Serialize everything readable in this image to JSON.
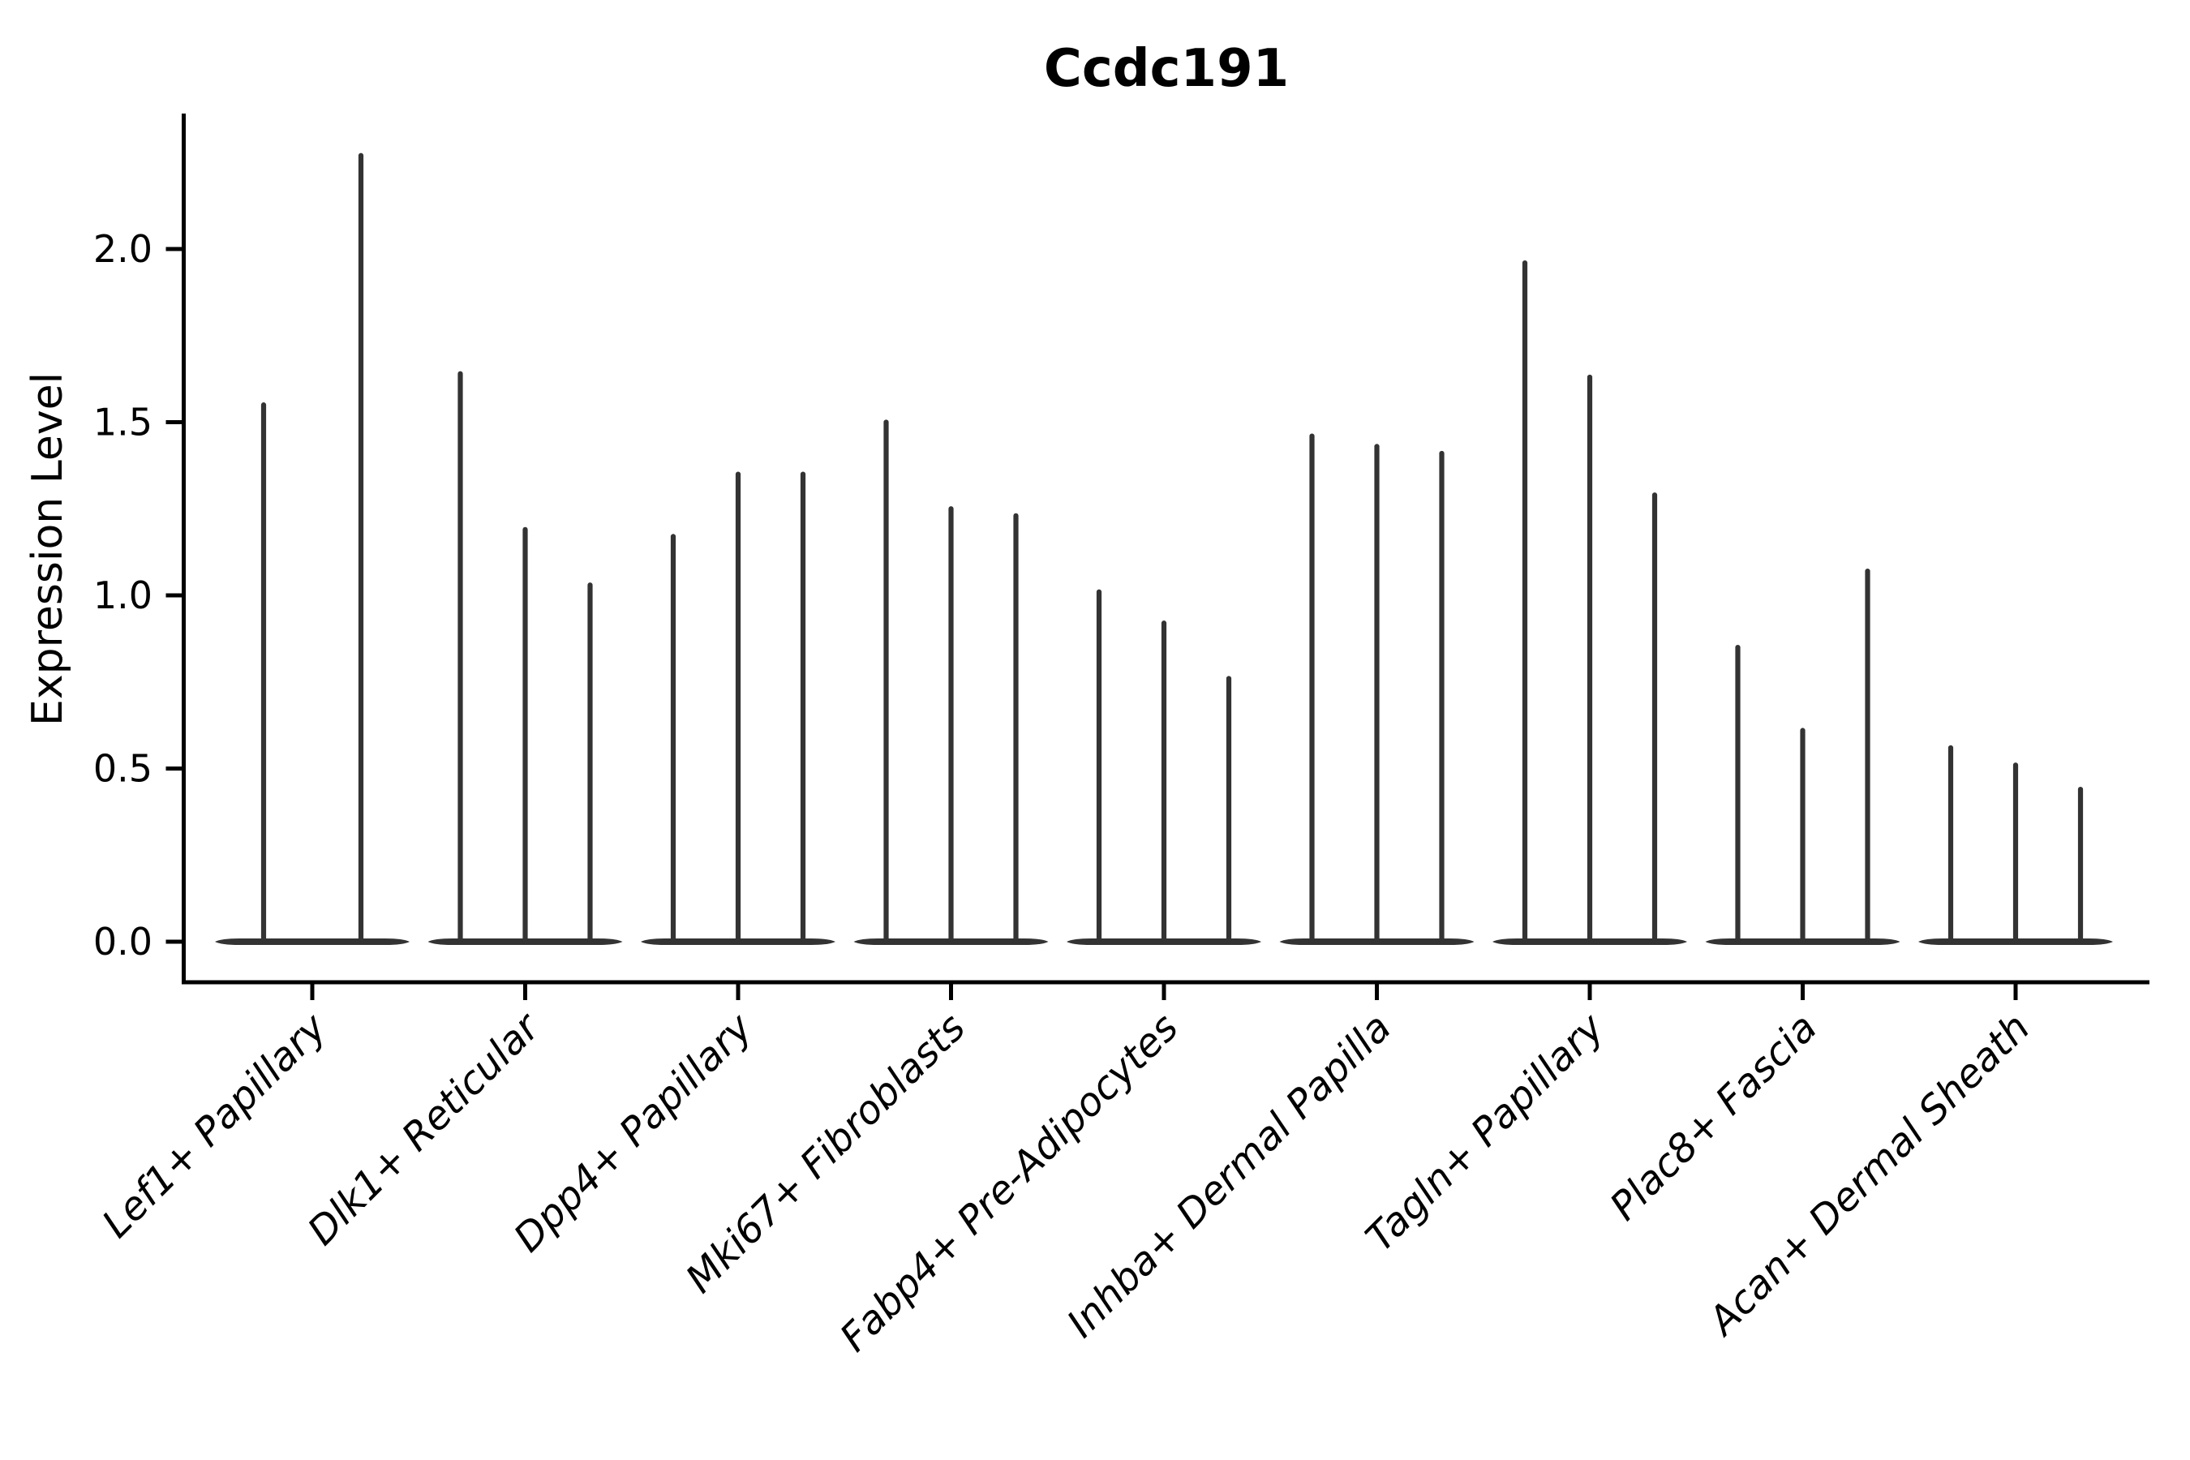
{
  "chart_data": {
    "type": "violin",
    "title": "Ccdc191",
    "xlabel": "",
    "ylabel": "Expression Level",
    "ylim": [
      -0.12,
      2.4
    ],
    "baseline_value": 0.0,
    "grid": false,
    "legend": "none",
    "yticks": [
      {
        "value": 0.0,
        "label": "0.0"
      },
      {
        "value": 0.5,
        "label": "0.5"
      },
      {
        "value": 1.0,
        "label": "1.0"
      },
      {
        "value": 1.5,
        "label": "1.5"
      },
      {
        "value": 2.0,
        "label": "2.0"
      }
    ],
    "categories": [
      "Lef1+ Papillary",
      "Dlk1+ Reticular",
      "Dpp4+ Papillary",
      "Mki67+ Fibroblasts",
      "Fabp4+ Pre-Adipocytes",
      "Inhba+ Dermal Papilla",
      "Tagln+ Papillary",
      "Plac8+ Fascia",
      "Acan+ Dermal Sheath"
    ],
    "groups": [
      {
        "label": "Lef1+ Papillary",
        "violin_max": [
          1.55,
          2.27
        ]
      },
      {
        "label": "Dlk1+ Reticular",
        "violin_max": [
          1.64,
          1.19,
          1.03
        ]
      },
      {
        "label": "Dpp4+ Papillary",
        "violin_max": [
          1.17,
          1.35,
          1.35
        ]
      },
      {
        "label": "Mki67+ Fibroblasts",
        "violin_max": [
          1.5,
          1.25,
          1.23
        ]
      },
      {
        "label": "Fabp4+ Pre-Adipocytes",
        "violin_max": [
          1.01,
          0.92,
          0.76
        ]
      },
      {
        "label": "Inhba+ Dermal Papilla",
        "violin_max": [
          1.46,
          1.43,
          1.41
        ]
      },
      {
        "label": "Tagln+ Papillary",
        "violin_max": [
          1.96,
          1.63,
          1.29
        ]
      },
      {
        "label": "Plac8+ Fascia",
        "violin_max": [
          0.85,
          0.61,
          1.07
        ]
      },
      {
        "label": "Acan+ Dermal Sheath",
        "violin_max": [
          0.56,
          0.51,
          0.44
        ]
      }
    ],
    "colors": {
      "violin": "#333333",
      "spine": "#000000",
      "text": "#000000",
      "background": "#ffffff"
    }
  }
}
